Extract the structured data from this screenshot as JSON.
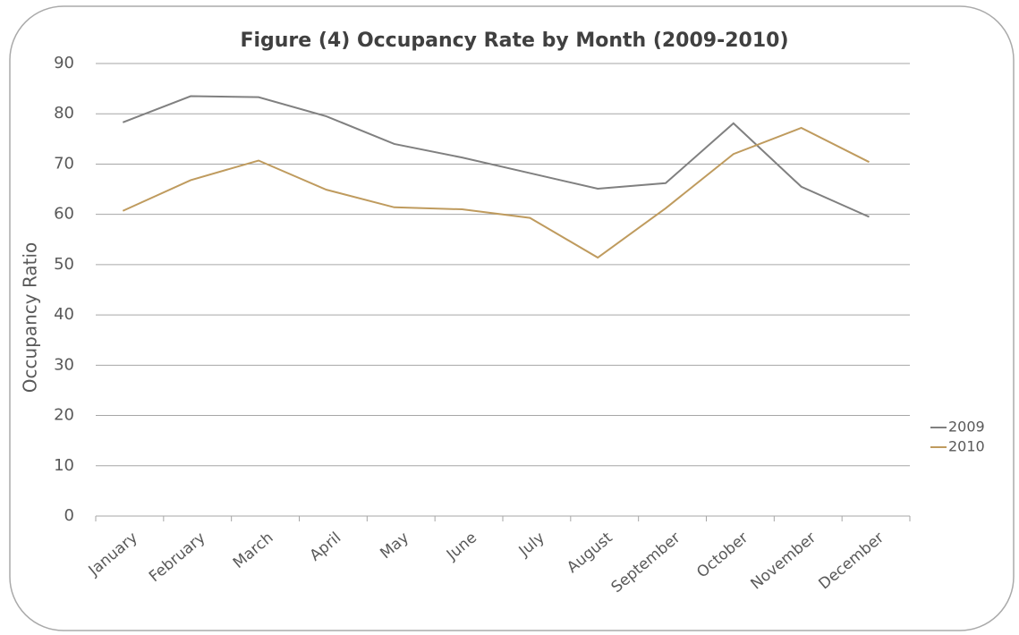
{
  "chart_data": {
    "type": "line",
    "title": "Figure  (4) Occupancy Rate by Month (2009-2010)",
    "y_label": "Occupancy Ratio",
    "categories": [
      "January",
      "February",
      "March",
      "April",
      "May",
      "June",
      "July",
      "August",
      "September",
      "October",
      "November",
      "December"
    ],
    "series": [
      {
        "name": "2009",
        "color": "#808080",
        "values": [
          78.3,
          83.5,
          83.3,
          79.5,
          74,
          71.3,
          68.2,
          65.1,
          66.2,
          78.1,
          65.5,
          59.5
        ]
      },
      {
        "name": "2010",
        "color": "#bf9b5e",
        "values": [
          60.7,
          66.8,
          70.7,
          64.9,
          61.4,
          61,
          59.3,
          51.4,
          61.2,
          72,
          77.2,
          70.4
        ]
      }
    ],
    "ylim": [
      0,
      90
    ],
    "yticks": [
      0,
      10,
      20,
      30,
      40,
      50,
      60,
      70,
      80,
      90
    ],
    "grid": true,
    "legend": "right"
  }
}
